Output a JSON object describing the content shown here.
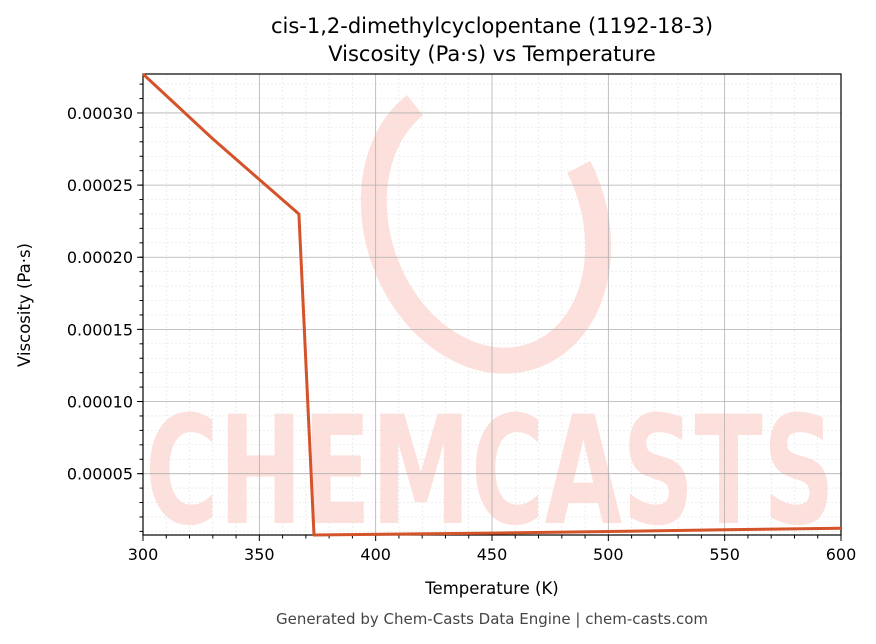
{
  "chart_data": {
    "type": "line",
    "title_line1": "cis-1,2-dimethylcyclopentane (1192-18-3)",
    "title_line2": "Viscosity (Pa·s) vs Temperature",
    "xlabel": "Temperature (K)",
    "ylabel": "Viscosity (Pa·s)",
    "xlim": [
      300,
      600
    ],
    "ylim": [
      7.5e-06,
      0.000327
    ],
    "x_ticks": [
      300,
      350,
      400,
      450,
      500,
      550,
      600
    ],
    "y_ticks": [
      5e-05,
      0.0001,
      0.00015,
      0.0002,
      0.00025,
      0.0003
    ],
    "x_tick_labels": [
      "300",
      "350",
      "400",
      "450",
      "500",
      "550",
      "600"
    ],
    "y_tick_labels": [
      "0.00005",
      "0.00010",
      "0.00015",
      "0.00020",
      "0.00025",
      "0.00030"
    ],
    "grid": true,
    "line_color": "#d4532a",
    "series": [
      {
        "x": [
          300,
          330,
          367,
          373.5,
          450,
          500,
          550,
          600
        ],
        "y": [
          0.000327,
          0.000282,
          0.00023,
          7.5e-06,
          8.8e-06,
          9.9e-06,
          1.11e-05,
          1.22e-05
        ]
      }
    ]
  },
  "watermark": {
    "text": "CHEMCASTS",
    "color": "#fde0db"
  },
  "footer": "Generated by Chem-Casts Data Engine | chem-casts.com"
}
